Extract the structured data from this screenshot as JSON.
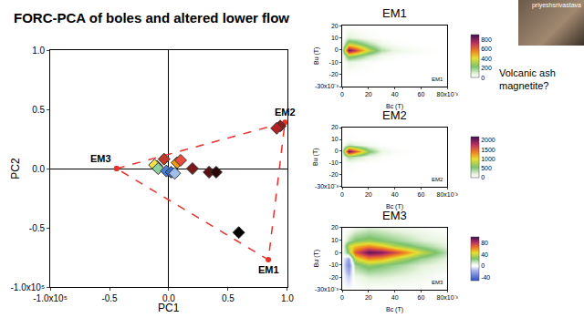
{
  "slide": {
    "title": "FORC-PCA of boles and altered lower flow",
    "note": [
      "Volcanic ash",
      "magnetite?"
    ],
    "presenter": "priyeshsrivastava"
  },
  "chart_data": [
    {
      "type": "scatter",
      "x_label": "PC1",
      "y_label": "PC2",
      "xlim": [
        -1.0,
        1.0
      ],
      "ylim": [
        -1.0,
        1.0
      ],
      "xticks": [
        {
          "value": -1.0,
          "label": "-1.0x10⁵"
        },
        -0.5,
        {
          "value": 0,
          "label": "0.0"
        },
        0.5,
        {
          "value": 1.0,
          "label": "1.0"
        }
      ],
      "yticks": [
        {
          "value": -1.0,
          "label": "-1.0x10⁵"
        },
        -0.5,
        {
          "value": 0,
          "label": "0.0"
        },
        0.5,
        {
          "value": 1.0,
          "label": "1.0"
        }
      ],
      "grid": false,
      "marker": "diamond",
      "x": [
        -0.1,
        -0.12,
        -0.09,
        -0.04,
        -0.02,
        0.02,
        0.07,
        0.1,
        0.05,
        0.2,
        0.34,
        0.4,
        0.59,
        0.94,
        0.91
      ],
      "values": [
        0.02,
        0.03,
        0.0,
        0.08,
        -0.02,
        -0.03,
        0.05,
        0.07,
        -0.04,
        0.0,
        -0.03,
        -0.03,
        -0.54,
        0.36,
        0.34
      ],
      "colors": [
        "#ffffff",
        "#f2e14c",
        "#8fd19e",
        "#c0392b",
        "#4a7fd4",
        "#3b6fc9",
        "#f39c12",
        "#e74c3c",
        "#9fbfe8",
        "#7b1a1a",
        "#5a1010",
        "#2a0808",
        "#000000",
        "#8b1a1a",
        "#b22222"
      ],
      "endmembers": {
        "names": [
          "EM3",
          "EM2",
          "EM1"
        ],
        "x": [
          -0.44,
          0.98,
          0.84
        ],
        "y": [
          0.0,
          0.39,
          -0.77
        ],
        "color": "#e8302a",
        "line_style": "dash"
      }
    },
    {
      "type": "heatmap",
      "title": "EM1",
      "x_label": "Bc (T)",
      "y_label": "Bu (T)",
      "xlim": [
        0,
        80
      ],
      "ylim": [
        -30,
        20
      ],
      "xticks": [
        0,
        20,
        40,
        60,
        {
          "value": 80,
          "label": "80x10⁻³"
        }
      ],
      "yticks": [
        20,
        10,
        0,
        -10,
        -20,
        {
          "value": -30,
          "label": "-30x10⁻³"
        }
      ],
      "x": [
        0,
        5,
        10,
        20,
        30,
        40,
        60,
        80
      ],
      "y": [
        -30,
        -20,
        -10,
        -5,
        0,
        5,
        10,
        20
      ],
      "cells": [
        [
          0,
          0,
          0,
          0,
          0,
          0,
          0,
          0
        ],
        [
          0,
          0,
          0,
          0,
          0,
          0,
          0,
          0
        ],
        [
          0,
          60,
          40,
          10,
          0,
          0,
          0,
          0
        ],
        [
          0,
          300,
          250,
          120,
          40,
          10,
          0,
          0
        ],
        [
          100,
          850,
          700,
          350,
          150,
          60,
          10,
          0
        ],
        [
          0,
          350,
          300,
          150,
          50,
          10,
          0,
          0
        ],
        [
          0,
          80,
          60,
          20,
          0,
          0,
          0,
          0
        ],
        [
          0,
          0,
          0,
          0,
          0,
          0,
          0,
          0
        ]
      ],
      "zlim": [
        0,
        900
      ],
      "zticks": [
        0,
        200,
        400,
        600,
        800
      ]
    },
    {
      "type": "heatmap",
      "title": "EM2",
      "x_label": "Bc (T)",
      "y_label": "Bu (T)",
      "xlim": [
        0,
        80
      ],
      "ylim": [
        -30,
        20
      ],
      "xticks": [
        0,
        20,
        40,
        60,
        {
          "value": 80,
          "label": "80x10⁻³"
        }
      ],
      "yticks": [
        20,
        10,
        0,
        -10,
        -20,
        {
          "value": -30,
          "label": "-30x10⁻³"
        }
      ],
      "x": [
        0,
        5,
        10,
        20,
        30,
        40,
        60,
        80
      ],
      "y": [
        -30,
        -20,
        -10,
        -5,
        0,
        5,
        10,
        20
      ],
      "cells": [
        [
          0,
          0,
          0,
          0,
          0,
          0,
          0,
          0
        ],
        [
          0,
          0,
          0,
          0,
          0,
          0,
          0,
          0
        ],
        [
          0,
          50,
          20,
          0,
          0,
          0,
          0,
          0
        ],
        [
          0,
          400,
          300,
          100,
          20,
          0,
          0,
          0
        ],
        [
          200,
          2100,
          1600,
          600,
          150,
          30,
          0,
          0
        ],
        [
          0,
          300,
          200,
          60,
          10,
          0,
          0,
          0
        ],
        [
          0,
          30,
          10,
          0,
          0,
          0,
          0,
          0
        ],
        [
          0,
          0,
          0,
          0,
          0,
          0,
          0,
          0
        ]
      ],
      "zlim": [
        0,
        2200
      ],
      "zticks": [
        0,
        500,
        1000,
        1500,
        2000
      ]
    },
    {
      "type": "heatmap",
      "title": "EM3",
      "x_label": "Bc (T)",
      "y_label": "Bu (T)",
      "xlim": [
        0,
        80
      ],
      "ylim": [
        -30,
        20
      ],
      "xticks": [
        0,
        20,
        40,
        60,
        {
          "value": 80,
          "label": "80x10⁻³"
        }
      ],
      "yticks": [
        20,
        10,
        0,
        -10,
        -20,
        {
          "value": -30,
          "label": "-30x10⁻³"
        }
      ],
      "x": [
        0,
        5,
        10,
        20,
        30,
        40,
        60,
        80
      ],
      "y": [
        -30,
        -20,
        -10,
        -5,
        0,
        5,
        10,
        20
      ],
      "cells": [
        [
          0,
          0,
          0,
          0,
          0,
          0,
          0,
          0
        ],
        [
          0,
          -10,
          5,
          10,
          10,
          8,
          5,
          0
        ],
        [
          0,
          -30,
          20,
          30,
          25,
          20,
          10,
          5
        ],
        [
          0,
          -20,
          40,
          60,
          55,
          40,
          20,
          8
        ],
        [
          0,
          30,
          70,
          95,
          90,
          75,
          40,
          15
        ],
        [
          0,
          40,
          50,
          60,
          50,
          35,
          20,
          8
        ],
        [
          0,
          15,
          25,
          30,
          25,
          20,
          10,
          5
        ],
        [
          0,
          0,
          5,
          10,
          8,
          5,
          3,
          0
        ]
      ],
      "zlim": [
        -50,
        100
      ],
      "zticks": [
        -40,
        0,
        40,
        80
      ]
    }
  ]
}
